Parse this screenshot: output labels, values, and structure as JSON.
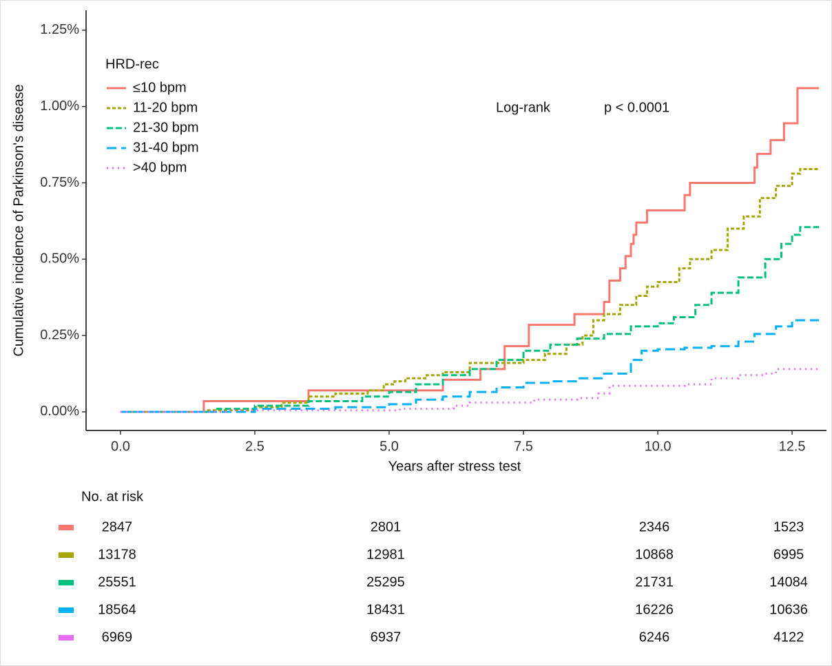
{
  "chart_data": {
    "type": "step",
    "y_label": "Cumulative incidence of Parkinson's disease",
    "x_label": "Years after stress test",
    "annotations": [
      "Log-rank",
      "p < 0.0001"
    ],
    "legend_title": "HRD-rec",
    "legend_position": "top-left",
    "xlim": [
      -0.64,
      13.14
    ],
    "xticks": [
      {
        "value": 0,
        "label": "0.0"
      },
      {
        "value": 2.5,
        "label": "2.5"
      },
      {
        "value": 5,
        "label": "5.0"
      },
      {
        "value": 7.5,
        "label": "7.5"
      },
      {
        "value": 10,
        "label": "10.0"
      },
      {
        "value": 12.5,
        "label": "12.5"
      }
    ],
    "ylim": [
      -0.061,
      1.315
    ],
    "yticks": [
      {
        "value": 0,
        "label": "0.00%"
      },
      {
        "value": 0.25,
        "label": "0.25%"
      },
      {
        "value": 0.5,
        "label": "0.50%"
      },
      {
        "value": 0.75,
        "label": "0.75%"
      },
      {
        "value": 1.0,
        "label": "1.00%"
      },
      {
        "value": 1.25,
        "label": "1.25%"
      }
    ],
    "series": [
      {
        "name": "≤10 bpm",
        "color": "#f8766d",
        "dash": "none",
        "x": [
          0,
          1.55,
          3.5,
          6.0,
          6.7,
          7.15,
          7.6,
          8.45,
          9.0,
          9.1,
          9.3,
          9.4,
          9.5,
          9.55,
          9.6,
          9.8,
          10.5,
          10.6,
          11.8,
          11.85,
          12.1,
          12.35,
          12.6,
          13
        ],
        "values": [
          0,
          0.035,
          0.07,
          0.105,
          0.14,
          0.215,
          0.285,
          0.32,
          0.36,
          0.43,
          0.47,
          0.51,
          0.55,
          0.58,
          0.62,
          0.66,
          0.71,
          0.75,
          0.8,
          0.845,
          0.89,
          0.945,
          1.06,
          1.06
        ]
      },
      {
        "name": "11-20  bpm",
        "color": "#a3a500",
        "dash": "5 3",
        "x": [
          0,
          1.6,
          2.5,
          3.0,
          3.5,
          4.0,
          4.6,
          4.9,
          5.1,
          5.3,
          5.7,
          6.0,
          6.5,
          7.0,
          7.5,
          7.9,
          8.3,
          8.6,
          8.8,
          9.0,
          9.3,
          9.6,
          9.8,
          10.0,
          10.4,
          10.6,
          11.0,
          11.3,
          11.6,
          11.9,
          12.2,
          12.5,
          12.65,
          13
        ],
        "values": [
          0,
          0.005,
          0.015,
          0.03,
          0.05,
          0.06,
          0.07,
          0.09,
          0.1,
          0.11,
          0.12,
          0.13,
          0.16,
          0.16,
          0.17,
          0.19,
          0.22,
          0.25,
          0.3,
          0.32,
          0.35,
          0.38,
          0.41,
          0.425,
          0.47,
          0.5,
          0.53,
          0.6,
          0.64,
          0.7,
          0.74,
          0.78,
          0.795,
          0.795
        ]
      },
      {
        "name": "21-30  bpm",
        "color": "#00bf7d",
        "dash": "9 4",
        "x": [
          0,
          1.8,
          2.5,
          3.5,
          4.5,
          5.0,
          5.5,
          6.0,
          6.5,
          7.0,
          7.5,
          8.0,
          8.5,
          9.0,
          9.5,
          10.0,
          10.3,
          10.7,
          11.0,
          11.5,
          12.0,
          12.3,
          12.5,
          12.65,
          13
        ],
        "values": [
          0,
          0.01,
          0.02,
          0.035,
          0.05,
          0.065,
          0.09,
          0.12,
          0.14,
          0.17,
          0.2,
          0.22,
          0.24,
          0.255,
          0.28,
          0.29,
          0.31,
          0.35,
          0.39,
          0.44,
          0.5,
          0.55,
          0.58,
          0.605,
          0.605
        ]
      },
      {
        "name": "31-40  bpm",
        "color": "#00b0f6",
        "dash": "14 7",
        "x": [
          0,
          2.5,
          4.0,
          5.0,
          5.5,
          6.0,
          6.5,
          7.0,
          7.5,
          8.0,
          8.5,
          9.0,
          9.5,
          9.7,
          10.0,
          10.5,
          11.0,
          11.5,
          11.8,
          12.2,
          12.5,
          13
        ],
        "values": [
          0,
          0.01,
          0.015,
          0.025,
          0.04,
          0.05,
          0.065,
          0.08,
          0.095,
          0.1,
          0.11,
          0.125,
          0.17,
          0.2,
          0.205,
          0.21,
          0.215,
          0.23,
          0.255,
          0.28,
          0.3,
          0.3
        ]
      },
      {
        "name": ">40  bpm",
        "color": "#e76bf3",
        "dash": "2 6",
        "x": [
          0,
          2.0,
          5.0,
          5.2,
          6.2,
          6.5,
          7.5,
          7.7,
          8.5,
          8.9,
          9.1,
          10.0,
          10.5,
          11.0,
          11.5,
          12.0,
          12.2,
          13
        ],
        "values": [
          0,
          0.005,
          0.005,
          0.01,
          0.02,
          0.03,
          0.03,
          0.04,
          0.045,
          0.06,
          0.085,
          0.085,
          0.09,
          0.11,
          0.12,
          0.125,
          0.14,
          0.14
        ]
      }
    ],
    "risk_table": {
      "title": "No. at risk",
      "rows": [
        [
          2847,
          2801,
          2346,
          1523
        ],
        [
          13178,
          12981,
          10868,
          6995
        ],
        [
          25551,
          25295,
          21731,
          14084
        ],
        [
          18564,
          18431,
          16226,
          10636
        ],
        [
          6969,
          6937,
          6246,
          4122
        ]
      ]
    }
  }
}
